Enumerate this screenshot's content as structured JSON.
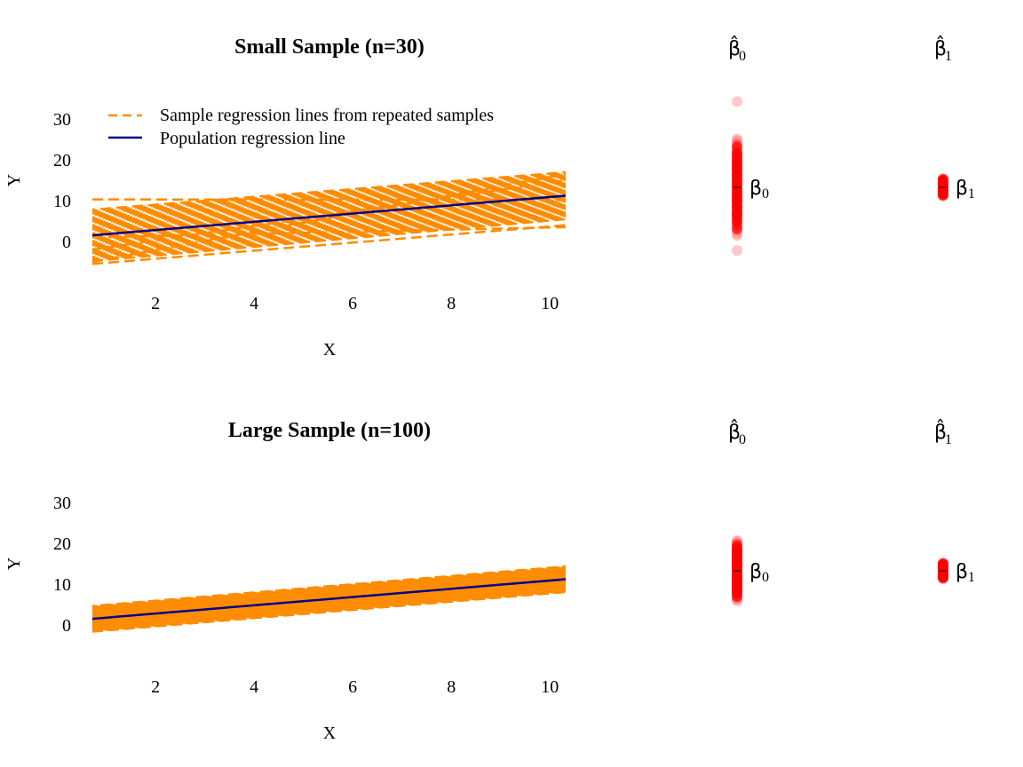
{
  "colors": {
    "sample_lines": "#FF8C00",
    "population_line": "#00008B",
    "estimates": "#FF0000"
  },
  "legend": {
    "sample_label": "Sample regression lines from repeated samples",
    "population_label": "Population regression line"
  },
  "chart_data": [
    {
      "type": "line",
      "title": "Small Sample (n=30)",
      "xlabel": "X",
      "ylabel": "Y",
      "xlim": [
        0.5,
        10.5
      ],
      "ylim": [
        -15,
        38
      ],
      "x_ticks": [
        2,
        4,
        6,
        8,
        10
      ],
      "y_ticks": [
        0,
        10,
        20,
        30
      ],
      "population_line": {
        "intercept": 0,
        "slope": 1.1
      },
      "sample_lines": {
        "intercept_range": [
          -8,
          11
        ],
        "slope_range": [
          0,
          1.8
        ]
      },
      "noise_band": {
        "half_width_at_x1": 6,
        "half_width_at_x5": 1.8,
        "half_width_at_x10": 5.5
      },
      "legend_position": "top-left",
      "grid": false
    },
    {
      "type": "line",
      "title": "Large Sample (n=100)",
      "xlabel": "X",
      "ylabel": "Y",
      "xlim": [
        0.5,
        10.5
      ],
      "ylim": [
        -15,
        38
      ],
      "x_ticks": [
        2,
        4,
        6,
        8,
        10
      ],
      "y_ticks": [
        0,
        10,
        20,
        30
      ],
      "population_line": {
        "intercept": 0,
        "slope": 1.1
      },
      "noise_band": {
        "half_width_at_x1": 3,
        "half_width_at_x5": 1,
        "half_width_at_x10": 3
      },
      "grid": false
    },
    {
      "type": "scatter",
      "panel": "small",
      "header": "β̂0",
      "estimates": [
        {
          "name": "β0",
          "marker": "β",
          "subscript": "0",
          "center": 12,
          "spread": 12,
          "outliers": [
            33,
            -3.5
          ]
        },
        {
          "name": "β1",
          "marker": "β",
          "subscript": "1",
          "center": 12,
          "spread": 2.2,
          "outliers": []
        }
      ],
      "headers": [
        {
          "symbol": "β̂",
          "subscript": "0"
        },
        {
          "symbol": "β̂",
          "subscript": "1"
        }
      ]
    },
    {
      "type": "scatter",
      "panel": "large",
      "estimates": [
        {
          "name": "β0",
          "marker": "β",
          "subscript": "0",
          "center": 13,
          "spread": 7.5,
          "outliers": []
        },
        {
          "name": "β1",
          "marker": "β",
          "subscript": "1",
          "center": 13,
          "spread": 2,
          "outliers": []
        }
      ],
      "headers": [
        {
          "symbol": "β̂",
          "subscript": "0"
        },
        {
          "symbol": "β̂",
          "subscript": "1"
        }
      ]
    }
  ]
}
